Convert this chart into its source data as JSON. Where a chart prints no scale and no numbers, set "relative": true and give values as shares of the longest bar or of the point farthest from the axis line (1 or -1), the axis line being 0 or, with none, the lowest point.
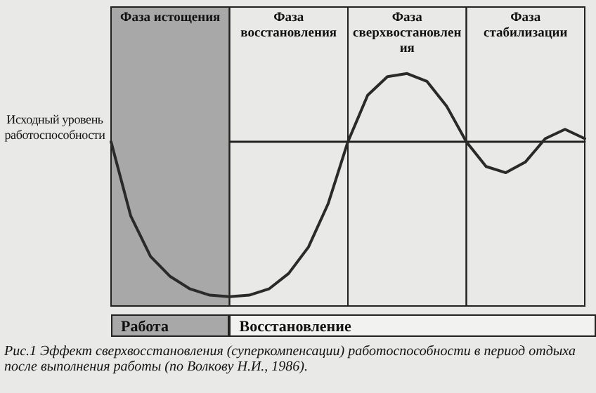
{
  "chart_data": {
    "type": "line",
    "relative": true,
    "grid": false,
    "marker": "none",
    "line_style": "solid",
    "ylabel": "Исходный уровень работоспособности",
    "categories": [
      null,
      null,
      null,
      null,
      null,
      null,
      null,
      null,
      null,
      null,
      null,
      null,
      null,
      null,
      null,
      null,
      null,
      null,
      null,
      null,
      null,
      null,
      null,
      null,
      null
    ],
    "series": [
      {
        "color": "#2a2a2a",
        "values": [
          0,
          -0.48,
          -0.74,
          -0.87,
          -0.95,
          -0.99,
          -1,
          -0.99,
          -0.95,
          -0.85,
          -0.68,
          -0.4,
          0,
          0.3,
          0.42,
          0.44,
          0.39,
          0.23,
          0,
          -0.16,
          -0.2,
          -0.13,
          0.02,
          0.08,
          0.02
        ]
      }
    ],
    "annotations": [
      "Фаза истощения",
      "Фаза восстановления",
      "Фаза сверхвостановления",
      "Фаза стабилизации",
      "Работа",
      "Восстановление",
      "Рис.1 Эффект сверхвосстановления (суперкомпенсации) работоспособности в период отдыха после выполнения работы (по Волкову Н.И., 1986)."
    ]
  }
}
